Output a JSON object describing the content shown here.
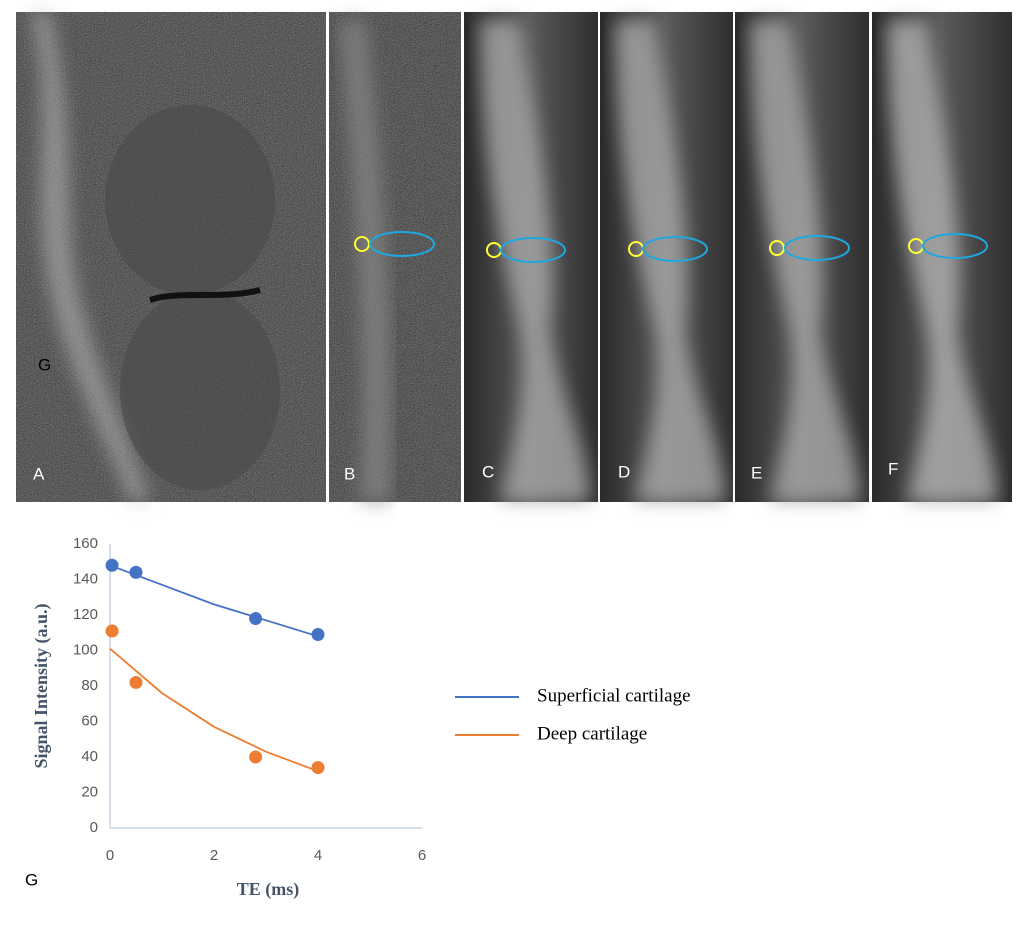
{
  "panels": [
    {
      "label": "A",
      "annotation": "G"
    },
    {
      "label": "B"
    },
    {
      "label": "C"
    },
    {
      "label": "D"
    },
    {
      "label": "E"
    },
    {
      "label": "F"
    }
  ],
  "chart_label": "G",
  "chart_data": {
    "type": "scatter",
    "x_label": "TE (ms)",
    "y_label": "Signal Intensity (a.u.)",
    "xlim": [
      0,
      6
    ],
    "xticks": [
      0,
      2,
      4,
      6
    ],
    "ylim": [
      0,
      160
    ],
    "yticks": [
      0,
      20,
      40,
      60,
      80,
      100,
      120,
      140,
      160
    ],
    "grid": false,
    "legend": "right",
    "series": [
      {
        "name": "Superficial cartilage",
        "color": "#4472c4",
        "x": [
          0.04,
          0.5,
          2.8,
          4
        ],
        "values": [
          148,
          144,
          118,
          109
        ],
        "fit_x": [
          0,
          1,
          2,
          3,
          4
        ],
        "fit_values": [
          148,
          137,
          126,
          117,
          108
        ]
      },
      {
        "name": "Deep cartilage",
        "color": "#ed7d31",
        "x": [
          0.04,
          0.5,
          2.8,
          4
        ],
        "values": [
          111,
          82,
          40,
          34
        ],
        "fit_x": [
          0,
          1,
          2,
          3,
          4
        ],
        "fit_values": [
          101,
          76,
          57,
          43,
          32
        ]
      }
    ]
  }
}
